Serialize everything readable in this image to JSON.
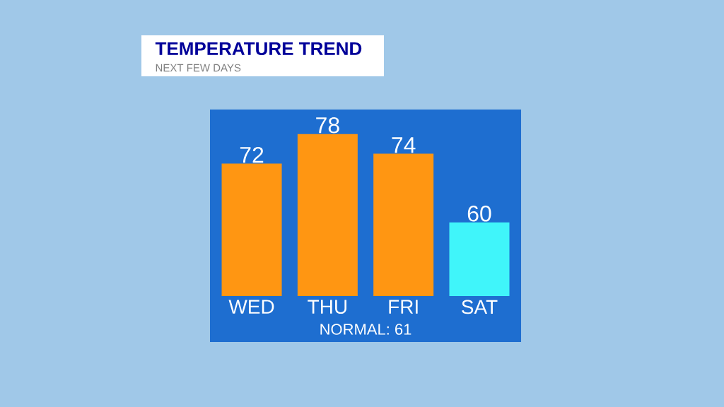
{
  "chart_data": {
    "type": "bar",
    "title": "TEMPERATURE TREND",
    "subtitle": "NEXT FEW DAYS",
    "categories": [
      "WED",
      "THU",
      "FRI",
      "SAT"
    ],
    "values": [
      72,
      78,
      74,
      60
    ],
    "colors": [
      "#ff9612",
      "#ff9612",
      "#ff9612",
      "#40f5fa"
    ],
    "ylim": [
      45,
      83
    ],
    "tick_labels": "x",
    "data_labels": true,
    "annotations": [
      "NORMAL: 61"
    ]
  }
}
